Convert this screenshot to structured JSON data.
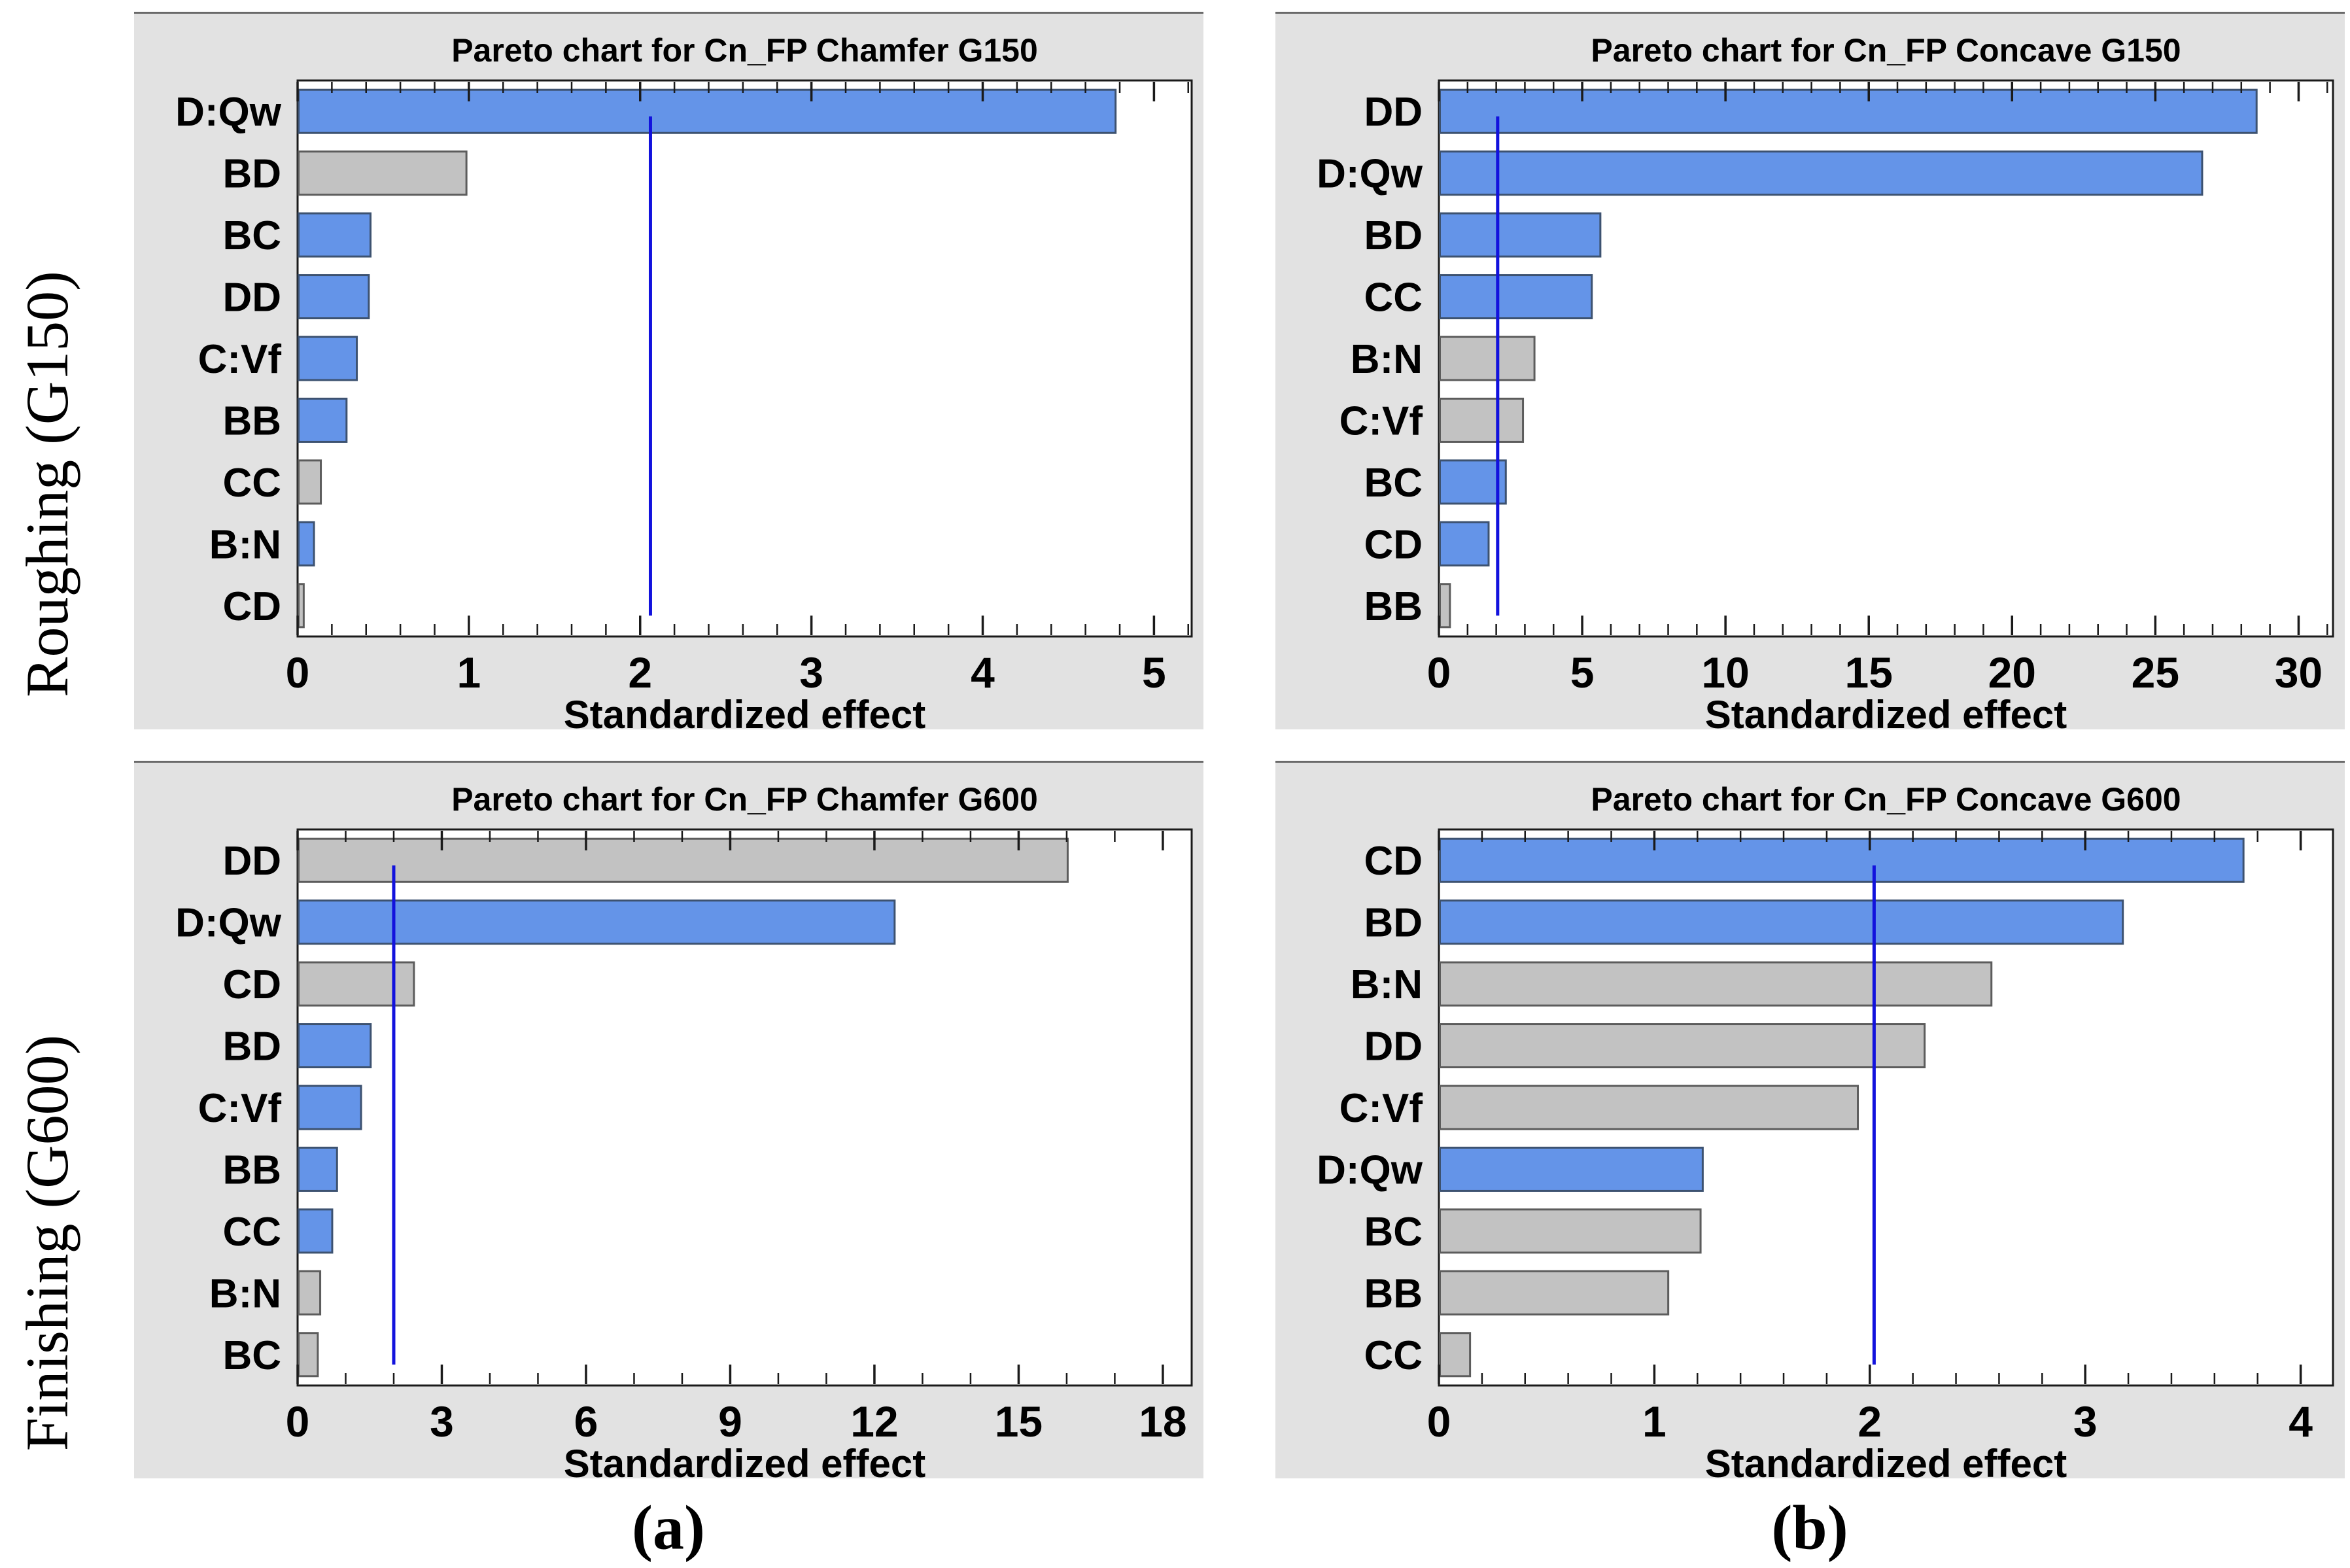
{
  "figure": {
    "row_labels": [
      "Roughing (G150)",
      "Finishing (G600)"
    ],
    "captions": [
      "(a)",
      "(b)"
    ]
  },
  "colors": {
    "positive_bar_fill": "#6494e8",
    "positive_bar_border": "#3d5270",
    "negative_bar_fill": "#c2c2c2",
    "negative_bar_border": "#5c5c5c",
    "reference_line": "#1212dd",
    "panel_bg": "#e2e2e2",
    "panel_top_border": "#6a6a6a",
    "plot_bg": "#ffffff",
    "plot_border": "#1a1a1a",
    "text": "#000000"
  },
  "chart_data": [
    {
      "type": "bar",
      "orientation": "horizontal",
      "title": "Pareto chart for Cn_FP Chamfer G150",
      "xlabel": "Standardized effect",
      "categories": [
        "D:Qw",
        "BD",
        "BC",
        "DD",
        "C:Vf",
        "BB",
        "CC",
        "B:N",
        "CD"
      ],
      "values": [
        4.77,
        0.98,
        0.42,
        0.41,
        0.34,
        0.28,
        0.13,
        0.09,
        0.03
      ],
      "signs": [
        "+",
        "-",
        "+",
        "+",
        "+",
        "+",
        "-",
        "+",
        "-"
      ],
      "reference_line": 2.06,
      "xlim": [
        0,
        5.22
      ],
      "major_tick": 1,
      "minor_tick": 0.2,
      "tick_labels": [
        "0",
        "1",
        "2",
        "3",
        "4",
        "5"
      ]
    },
    {
      "type": "bar",
      "orientation": "horizontal",
      "title": "Pareto chart for Cn_FP Concave G150",
      "xlabel": "Standardized effect",
      "categories": [
        "DD",
        "D:Qw",
        "BD",
        "CC",
        "B:N",
        "C:Vf",
        "BC",
        "CD",
        "BB"
      ],
      "values": [
        28.5,
        26.6,
        5.6,
        5.3,
        3.3,
        2.9,
        2.3,
        1.7,
        0.35
      ],
      "signs": [
        "+",
        "+",
        "+",
        "+",
        "-",
        "-",
        "+",
        "+",
        "-"
      ],
      "reference_line": 2.05,
      "xlim": [
        0,
        31.2
      ],
      "major_tick": 5,
      "minor_tick": 1,
      "tick_labels": [
        "0",
        "5",
        "10",
        "15",
        "20",
        "25",
        "30"
      ]
    },
    {
      "type": "bar",
      "orientation": "horizontal",
      "title": "Pareto chart for Cn_FP Chamfer G600",
      "xlabel": "Standardized effect",
      "categories": [
        "DD",
        "D:Qw",
        "CD",
        "BD",
        "C:Vf",
        "BB",
        "CC",
        "B:N",
        "BC"
      ],
      "values": [
        16.0,
        12.4,
        2.4,
        1.5,
        1.3,
        0.8,
        0.7,
        0.45,
        0.4
      ],
      "signs": [
        "-",
        "+",
        "-",
        "+",
        "+",
        "+",
        "+",
        "-",
        "-"
      ],
      "reference_line": 2.0,
      "xlim": [
        0,
        18.6
      ],
      "major_tick": 3,
      "minor_tick": 1,
      "tick_labels": [
        "0",
        "3",
        "6",
        "9",
        "12",
        "15",
        "18"
      ]
    },
    {
      "type": "bar",
      "orientation": "horizontal",
      "title": "Pareto chart for Cn_FP Concave G600",
      "xlabel": "Standardized effect",
      "categories": [
        "CD",
        "BD",
        "B:N",
        "DD",
        "C:Vf",
        "D:Qw",
        "BC",
        "BB",
        "CC"
      ],
      "values": [
        3.73,
        3.17,
        2.56,
        2.25,
        1.94,
        1.22,
        1.21,
        1.06,
        0.14
      ],
      "signs": [
        "+",
        "+",
        "-",
        "-",
        "-",
        "+",
        "-",
        "-",
        "-"
      ],
      "reference_line": 2.02,
      "xlim": [
        0,
        4.15
      ],
      "major_tick": 1,
      "minor_tick": 0.2,
      "tick_labels": [
        "0",
        "1",
        "2",
        "3",
        "4"
      ]
    }
  ]
}
